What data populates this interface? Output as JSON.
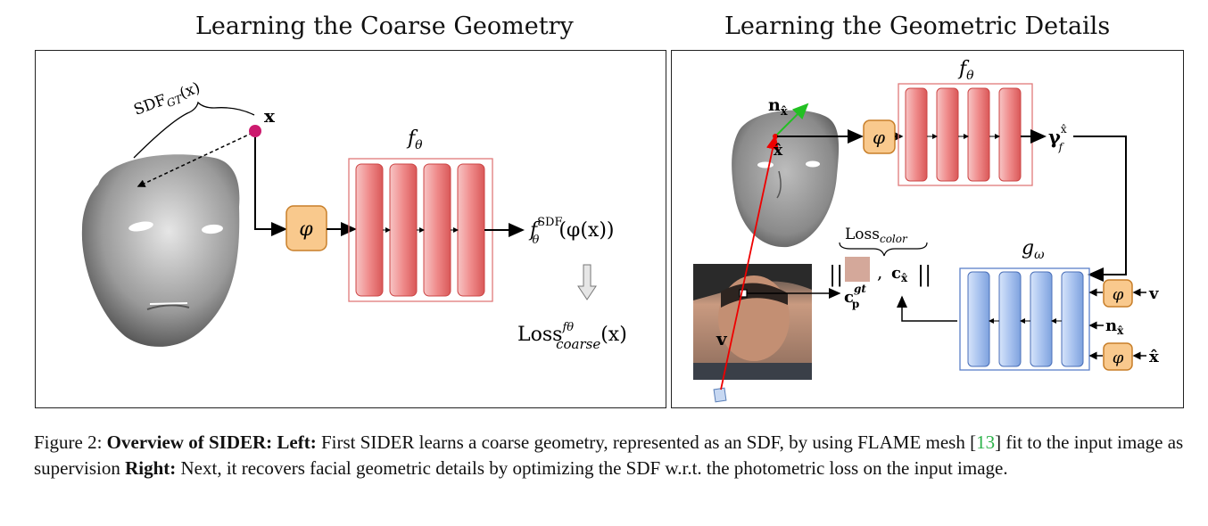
{
  "left_panel": {
    "title": "Learning the Coarse Geometry",
    "sdf_label": "SDF",
    "sdf_sub": "GT",
    "sdf_arg": "(x)",
    "point_label": "x",
    "phi": "φ",
    "network_label": "f",
    "network_sub": "θ",
    "output_f": "f",
    "output_sup": "SDF",
    "output_sub": "θ",
    "output_arg": "(φ(x))",
    "loss_main": "Loss",
    "loss_sup": "fθ",
    "loss_sub": "coarse",
    "loss_arg": "(x)"
  },
  "right_panel": {
    "title": "Learning the Geometric Details",
    "normal_label": "n",
    "normal_sub": "x̂",
    "xhat": "x̂",
    "phi": "φ",
    "network_f": "f",
    "network_f_sub": "θ",
    "gamma": "γ",
    "gamma_sup": "x̂",
    "gamma_sub": "f",
    "loss_color": "Loss",
    "loss_color_sub": "color",
    "c_gt": "c",
    "c_gt_sup": "gt",
    "c_gt_sub": "p",
    "c_hat": "c",
    "c_hat_sub": "x̂",
    "network_g": "g",
    "network_g_sub": "ω",
    "v_label": "v",
    "in_v": "v",
    "in_n": "n",
    "in_n_sub": "x̂",
    "in_x": "x̂"
  },
  "caption": {
    "prefix": "Figure 2: ",
    "bold1": "Overview of SIDER: Left:",
    "text1": " First SIDER learns a coarse geometry, represented as an SDF, by using FLAME mesh [",
    "ref": "13",
    "text2": "] fit to the input image as supervision ",
    "bold2": "Right:",
    "text3": " Next, it recovers facial geometric details by optimizing the SDF w.r.t. the photometric loss on the input image."
  }
}
